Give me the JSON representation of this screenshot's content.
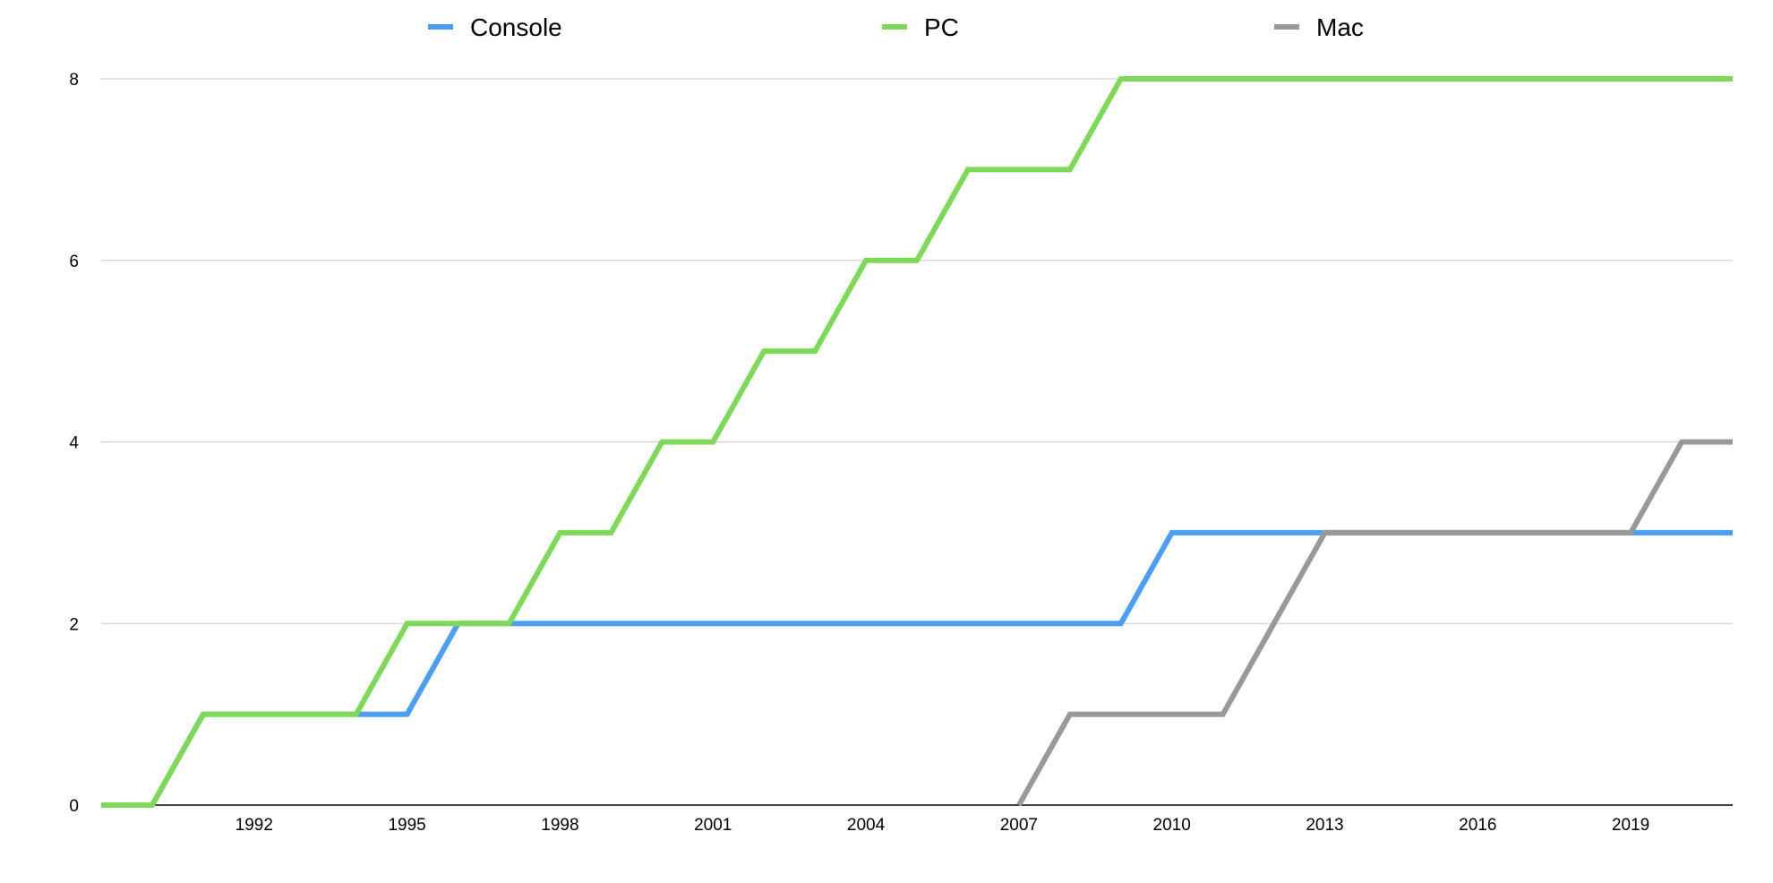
{
  "chart_data": {
    "type": "line",
    "step": true,
    "x": [
      1989,
      1990,
      1991,
      1992,
      1993,
      1994,
      1995,
      1996,
      1997,
      1998,
      1999,
      2000,
      2001,
      2002,
      2003,
      2004,
      2005,
      2006,
      2007,
      2008,
      2009,
      2010,
      2011,
      2012,
      2013,
      2014,
      2015,
      2016,
      2017,
      2018,
      2019,
      2020,
      2021
    ],
    "series": [
      {
        "name": "Console",
        "color": "#4a9ff5",
        "values": [
          0,
          0,
          1,
          1,
          1,
          1,
          1,
          2,
          2,
          2,
          2,
          2,
          2,
          2,
          2,
          2,
          2,
          2,
          2,
          2,
          2,
          3,
          3,
          3,
          3,
          3,
          3,
          3,
          3,
          3,
          3,
          3,
          3
        ]
      },
      {
        "name": "PC",
        "color": "#7ed957",
        "values": [
          0,
          0,
          1,
          1,
          1,
          1,
          2,
          2,
          2,
          3,
          3,
          4,
          4,
          5,
          5,
          6,
          6,
          7,
          7,
          7,
          8,
          8,
          8,
          8,
          8,
          8,
          8,
          8,
          8,
          8,
          8,
          8,
          8
        ]
      },
      {
        "name": "Mac",
        "color": "#999999",
        "start": 2007,
        "values": [
          null,
          null,
          null,
          null,
          null,
          null,
          null,
          null,
          null,
          null,
          null,
          null,
          null,
          null,
          null,
          null,
          null,
          null,
          0,
          1,
          1,
          1,
          1,
          2,
          3,
          3,
          3,
          3,
          3,
          3,
          3,
          4,
          4
        ]
      }
    ],
    "xticks": [
      "1992",
      "1995",
      "1998",
      "2001",
      "2004",
      "2007",
      "2010",
      "2013",
      "2016",
      "2019"
    ],
    "yticks": [
      "0",
      "2",
      "4",
      "6",
      "8"
    ],
    "ylim": [
      0,
      8
    ],
    "xlim": [
      1989,
      2021
    ],
    "title": "",
    "xlabel": "",
    "ylabel": "",
    "legend_position": "top",
    "grid": true
  }
}
